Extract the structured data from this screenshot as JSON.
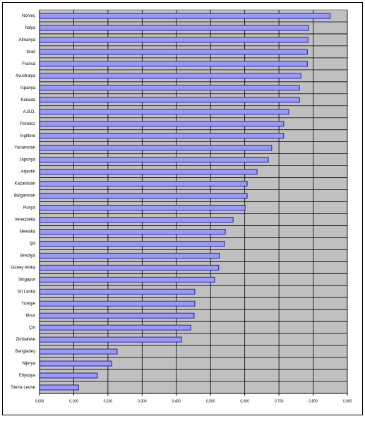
{
  "chart_data": {
    "type": "bar",
    "orientation": "horizontal",
    "categories": [
      "Norveç",
      "İtalya",
      "Almanya",
      "İsrail",
      "Fransa",
      "Avustralya",
      "İspanya",
      "Kanada",
      "A.B.D.",
      "Portekiz",
      "İngiltere",
      "Yunanistan",
      "Japonya",
      "Arjantin",
      "Kazakistan",
      "Bulgaristan",
      "Rusya",
      "Venezüella",
      "Meksika",
      "Şili",
      "Brezilya",
      "Güney Afrika",
      "Singapur",
      "Sri Lanka",
      "Türkiye",
      "Mısır",
      "Çin",
      "Zimbabwe",
      "Bangladeş",
      "Nijerya",
      "Etiyopya",
      "Sierra Leone"
    ],
    "values": [
      0.85,
      0.787,
      0.785,
      0.783,
      0.783,
      0.764,
      0.76,
      0.76,
      0.729,
      0.714,
      0.714,
      0.679,
      0.669,
      0.636,
      0.607,
      0.607,
      0.601,
      0.566,
      0.543,
      0.541,
      0.526,
      0.524,
      0.512,
      0.454,
      0.454,
      0.452,
      0.442,
      0.415,
      0.227,
      0.211,
      0.169,
      0.114
    ],
    "color": "#9999ff",
    "xlim": [
      0,
      0.9
    ],
    "xticks": [
      {
        "value": 0,
        "label": "0,000"
      },
      {
        "value": 0.1,
        "label": "0,100"
      },
      {
        "value": 0.2,
        "label": "0,200"
      },
      {
        "value": 0.3,
        "label": "0,300"
      },
      {
        "value": 0.4,
        "label": "0,400"
      },
      {
        "value": 0.5,
        "label": "0,500"
      },
      {
        "value": 0.6,
        "label": "0,600"
      },
      {
        "value": 0.7,
        "label": "0,700"
      },
      {
        "value": 0.8,
        "label": "0,800"
      },
      {
        "value": 0.9,
        "label": "0,900"
      }
    ],
    "grid": true
  }
}
